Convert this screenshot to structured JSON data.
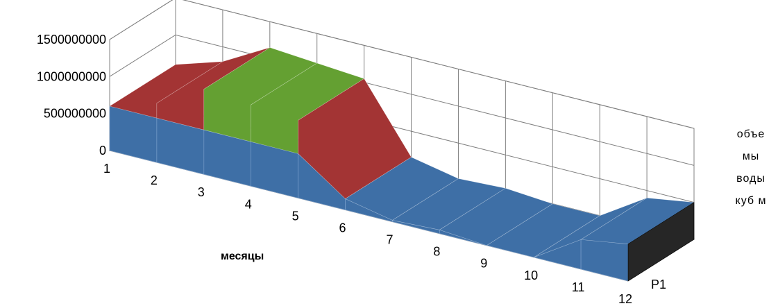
{
  "chart_data": {
    "type": "surface",
    "title": "",
    "xlabel": "месяцы",
    "ylabel": "",
    "series_label": "P1",
    "categories": [
      "1",
      "2",
      "3",
      "4",
      "5",
      "6",
      "7",
      "8",
      "9",
      "10",
      "11",
      "12"
    ],
    "yticks": [
      "0",
      "500000000",
      "1000000000",
      "1500000000"
    ],
    "ylim": [
      0,
      1500000000
    ],
    "series": [
      {
        "name": "P1",
        "values": [
          600000000,
          800000000,
          1150000000,
          1100000000,
          1050000000,
          150000000,
          20000000,
          50000000,
          0,
          0,
          400000000,
          500000000
        ]
      }
    ],
    "legend": [
      "объе",
      "мы",
      "воды",
      "куб м"
    ],
    "band_colors": [
      "#3e6fa6",
      "#a33434",
      "#64a032",
      "#a8c23a"
    ],
    "grid": true
  }
}
